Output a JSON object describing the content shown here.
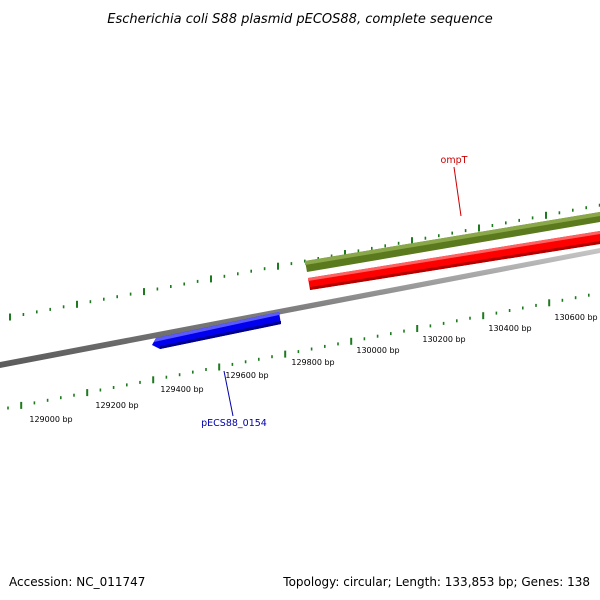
{
  "title": "Escherichia coli S88 plasmid pECOS88, complete sequence",
  "footer": {
    "accession": "Accession: NC_011747",
    "summary": "Topology: circular; Length: 133,853 bp; Genes: 138"
  },
  "colors": {
    "backbone": "#808080",
    "ticks": "#1e7a1e",
    "gene_plus": "#ff0000",
    "gene_minus": "#0000ff",
    "feature_track": "#6b8e23"
  },
  "ruler_labels": [
    {
      "id": "129000",
      "text": "129000 bp"
    },
    {
      "id": "129200",
      "text": "129200 bp"
    },
    {
      "id": "129400",
      "text": "129400 bp"
    },
    {
      "id": "129600",
      "text": "129600 bp"
    },
    {
      "id": "129800",
      "text": "129800 bp"
    },
    {
      "id": "130000",
      "text": "130000 bp"
    },
    {
      "id": "130200",
      "text": "130200 bp"
    },
    {
      "id": "130400",
      "text": "130400 bp"
    },
    {
      "id": "130600",
      "text": "130600 bp"
    }
  ],
  "genes": [
    {
      "id": "ompT",
      "label": "ompT",
      "strand": "plus",
      "color": "#cc0000"
    },
    {
      "id": "pecs88_0154",
      "label": "pECS88_0154",
      "strand": "minus",
      "color": "#0000aa"
    }
  ]
}
